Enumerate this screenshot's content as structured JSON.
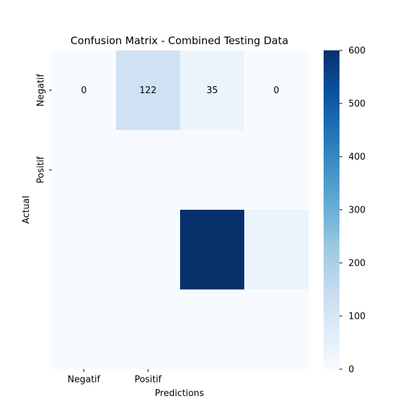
{
  "chart_data": {
    "type": "heatmap",
    "title": "Confusion Matrix - Combined Testing Data",
    "xlabel": "Predictions",
    "ylabel": "Actual",
    "x_tick_labels": [
      "Negatif",
      "Positif"
    ],
    "y_tick_labels": [
      "Negatif",
      "Positif"
    ],
    "rows": 4,
    "cols": 4,
    "values": [
      [
        0,
        122,
        35,
        0
      ],
      [
        0,
        0,
        0,
        0
      ],
      [
        0,
        0,
        600,
        35
      ],
      [
        0,
        0,
        0,
        0
      ]
    ],
    "annotations": [
      "0",
      "122",
      "35",
      "0"
    ],
    "colormap": "Blues",
    "vmin": 0,
    "vmax": 600,
    "colorbar_ticks": [
      0,
      100,
      200,
      300,
      400,
      500,
      600
    ]
  }
}
